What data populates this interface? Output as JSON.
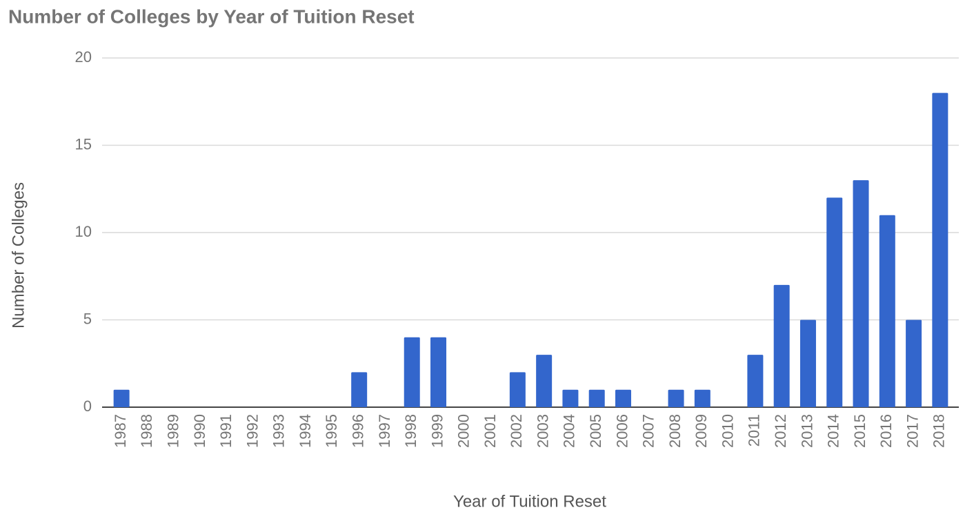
{
  "chart_data": {
    "type": "bar",
    "title": "Number of Colleges by Year of Tuition Reset",
    "x_label": "Year of Tuition Reset",
    "y_label": "Number of Colleges",
    "categories": [
      "1987",
      "1988",
      "1989",
      "1990",
      "1991",
      "1992",
      "1993",
      "1994",
      "1995",
      "1996",
      "1997",
      "1998",
      "1999",
      "2000",
      "2001",
      "2002",
      "2003",
      "2004",
      "2005",
      "2006",
      "2007",
      "2008",
      "2009",
      "2010",
      "2011",
      "2012",
      "2013",
      "2014",
      "2015",
      "2016",
      "2017",
      "2018"
    ],
    "values": [
      1,
      0,
      0,
      0,
      0,
      0,
      0,
      0,
      0,
      2,
      0,
      4,
      4,
      0,
      0,
      2,
      3,
      1,
      1,
      1,
      0,
      1,
      1,
      0,
      3,
      7,
      5,
      12,
      13,
      11,
      5,
      18
    ],
    "color": "#3366cc",
    "ylim": [
      0,
      20
    ],
    "yticks": [
      0,
      5,
      10,
      15,
      20
    ],
    "grid": true
  }
}
